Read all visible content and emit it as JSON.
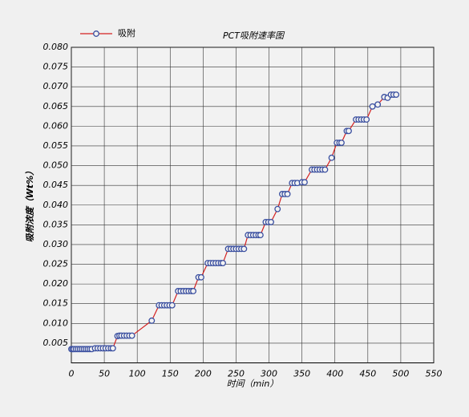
{
  "chart_data": {
    "type": "line",
    "title": "PCT吸附速率图",
    "x_label": "时间（min）",
    "y_label": "吸附浓度（Wt%）",
    "x": [
      0,
      2,
      4,
      7,
      10,
      13,
      16,
      19,
      22,
      25,
      28,
      31,
      36,
      40,
      44,
      48,
      52,
      56,
      60,
      63,
      70,
      73,
      76,
      80,
      84,
      88,
      92,
      122,
      133,
      137,
      141,
      145,
      149,
      153,
      162,
      166,
      170,
      174,
      178,
      182,
      185,
      193,
      197,
      207,
      211,
      215,
      219,
      223,
      227,
      230,
      238,
      242,
      246,
      250,
      254,
      258,
      262,
      268,
      272,
      276,
      280,
      284,
      287,
      295,
      299,
      303,
      313,
      320,
      324,
      328,
      335,
      339,
      343,
      350,
      354,
      365,
      369,
      373,
      377,
      381,
      385,
      395,
      403,
      407,
      410,
      418,
      421,
      432,
      436,
      440,
      444,
      448,
      457,
      465,
      475,
      480,
      485,
      489,
      493
    ],
    "series": [
      {
        "name": "吸附",
        "color": "#d42020",
        "marker_color": "#3a4fa0",
        "values": [
          0.0035,
          0.0035,
          0.0035,
          0.0035,
          0.0035,
          0.0035,
          0.0035,
          0.0035,
          0.0035,
          0.0035,
          0.0035,
          0.0035,
          0.0037,
          0.0037,
          0.0037,
          0.0037,
          0.0037,
          0.0037,
          0.0037,
          0.0037,
          0.0068,
          0.0069,
          0.0069,
          0.0069,
          0.0069,
          0.0069,
          0.0069,
          0.0107,
          0.0146,
          0.0146,
          0.0146,
          0.0146,
          0.0146,
          0.0146,
          0.0182,
          0.0182,
          0.0182,
          0.0182,
          0.0182,
          0.0182,
          0.0182,
          0.0217,
          0.0217,
          0.0253,
          0.0253,
          0.0253,
          0.0253,
          0.0253,
          0.0253,
          0.0253,
          0.0289,
          0.0289,
          0.0289,
          0.0289,
          0.0289,
          0.0289,
          0.0289,
          0.0324,
          0.0324,
          0.0324,
          0.0324,
          0.0324,
          0.0324,
          0.0357,
          0.0357,
          0.0357,
          0.039,
          0.0428,
          0.0428,
          0.0428,
          0.0456,
          0.0456,
          0.0456,
          0.0458,
          0.0458,
          0.049,
          0.049,
          0.049,
          0.049,
          0.049,
          0.049,
          0.052,
          0.0558,
          0.0558,
          0.0558,
          0.0588,
          0.0588,
          0.0617,
          0.0617,
          0.0617,
          0.0617,
          0.0617,
          0.065,
          0.0655,
          0.0674,
          0.0672,
          0.068,
          0.068,
          0.068
        ]
      }
    ],
    "xlim": [
      0,
      550
    ],
    "xticks": [
      0,
      50,
      100,
      150,
      200,
      250,
      300,
      350,
      400,
      450,
      500,
      550
    ],
    "ylim": [
      0,
      0.08
    ],
    "yticks": [
      0.005,
      {
        "value": 0.01,
        "label": "0.010"
      },
      0.015,
      {
        "value": 0.02,
        "label": "0.020"
      },
      0.025,
      {
        "value": 0.03,
        "label": "0.030"
      },
      0.035,
      {
        "value": 0.04,
        "label": "0.040"
      },
      0.045,
      {
        "value": 0.05,
        "label": "0.050"
      },
      0.055,
      {
        "value": 0.06,
        "label": "0.060"
      },
      0.065,
      {
        "value": 0.07,
        "label": "0.070"
      },
      0.075,
      {
        "value": 0.08,
        "label": "0.080"
      }
    ],
    "grid": true
  }
}
